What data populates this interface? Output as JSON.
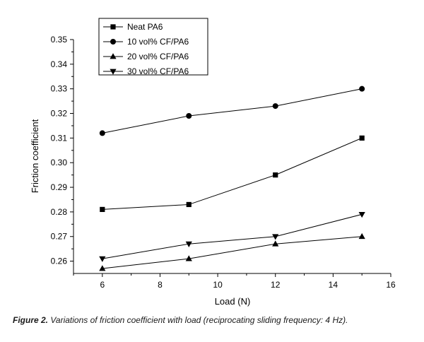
{
  "chart_data": {
    "type": "line",
    "title": "",
    "xlabel": "Load (N)",
    "ylabel": "Friction coefficient",
    "xlim": [
      5,
      16
    ],
    "ylim": [
      0.255,
      0.35
    ],
    "x_ticks": [
      6,
      8,
      10,
      12,
      14,
      16
    ],
    "y_ticks": [
      0.26,
      0.27,
      0.28,
      0.29,
      0.3,
      0.31,
      0.32,
      0.33,
      0.34,
      0.35
    ],
    "x_tick_labels": [
      "6",
      "8",
      "10",
      "12",
      "14",
      "16"
    ],
    "y_tick_labels": [
      "0.26",
      "0.27",
      "0.28",
      "0.29",
      "0.30",
      "0.31",
      "0.32",
      "0.33",
      "0.34",
      "0.35"
    ],
    "grid": false,
    "legend_position": "top-left",
    "x": [
      6,
      9,
      12,
      15
    ],
    "series": [
      {
        "name": "Neat PA6",
        "marker": "square",
        "values": [
          0.281,
          0.283,
          0.295,
          0.31
        ]
      },
      {
        "name": "10 vol% CF/PA6",
        "marker": "circle",
        "values": [
          0.312,
          0.319,
          0.323,
          0.33
        ]
      },
      {
        "name": "20 vol% CF/PA6",
        "marker": "triangle-up",
        "values": [
          0.257,
          0.261,
          0.267,
          0.27
        ]
      },
      {
        "name": "30 vol% CF/PA6",
        "marker": "triangle-down",
        "values": [
          0.261,
          0.267,
          0.27,
          0.279
        ]
      }
    ]
  },
  "caption": {
    "label": "Figure 2.",
    "text": " Variations of friction coefficient with load (reciprocating sliding frequency: 4 Hz)."
  }
}
